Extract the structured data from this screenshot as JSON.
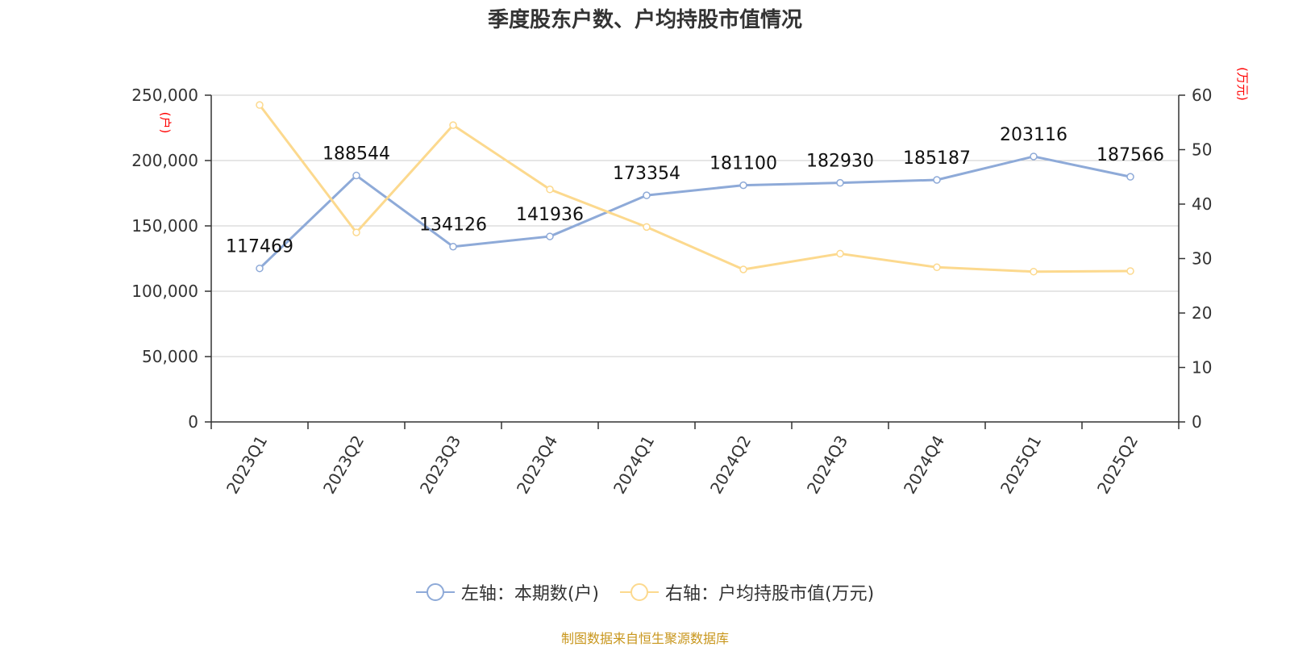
{
  "chart_data": {
    "type": "line",
    "title": "季度股东户数、户均持股市值情况",
    "categories": [
      "2023Q1",
      "2023Q2",
      "2023Q3",
      "2023Q4",
      "2024Q1",
      "2024Q2",
      "2024Q3",
      "2024Q4",
      "2025Q1",
      "2025Q2"
    ],
    "left_axis": {
      "unit": "(户)",
      "ylim": [
        0,
        250000
      ],
      "ticks": [
        "0",
        "50,000",
        "100,000",
        "150,000",
        "200,000",
        "250,000"
      ],
      "tick_values": [
        0,
        50000,
        100000,
        150000,
        200000,
        250000
      ]
    },
    "right_axis": {
      "unit": "(万元)",
      "ylim": [
        0,
        60
      ],
      "ticks": [
        "0",
        "10",
        "20",
        "30",
        "40",
        "50",
        "60"
      ],
      "tick_values": [
        0,
        10,
        20,
        30,
        40,
        50,
        60
      ]
    },
    "series": [
      {
        "name": "左轴：本期数(户)",
        "axis": "left",
        "color": "#8eaad8",
        "values": [
          117469,
          188544,
          134126,
          141936,
          173354,
          181100,
          182930,
          185187,
          203116,
          187566
        ],
        "labels": [
          "117469",
          "188544",
          "134126",
          "141936",
          "173354",
          "181100",
          "182930",
          "185187",
          "203116",
          "187566"
        ]
      },
      {
        "name": "右轴：户均持股市值(万元)",
        "axis": "right",
        "color": "#fcd98e",
        "values": [
          58.2,
          34.8,
          54.5,
          42.7,
          35.8,
          28.0,
          30.9,
          28.4,
          27.6,
          27.7
        ]
      }
    ],
    "grid": true,
    "legend_position": "bottom"
  },
  "source_note": "制图数据来自恒生聚源数据库"
}
